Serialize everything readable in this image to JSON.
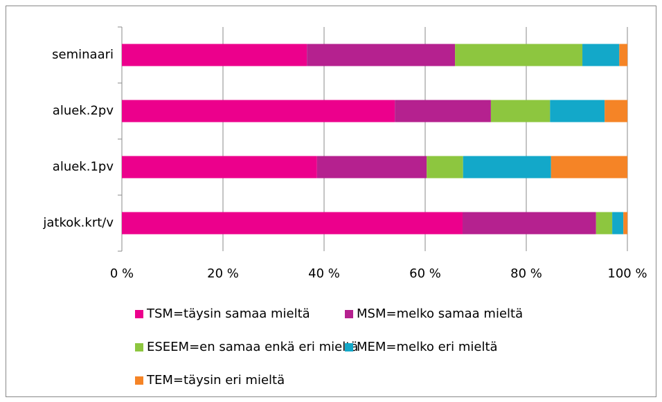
{
  "chart_data": {
    "type": "stacked-barh",
    "categories": [
      "seminaari",
      "aluek.2pv",
      "aluek.1pv",
      "jatkok.krt/v"
    ],
    "series": [
      {
        "name": "TSM=täysin samaa mieltä",
        "color": "#ec008c",
        "values": [
          36.6,
          54.0,
          38.6,
          67.4
        ]
      },
      {
        "name": "MSM=melko samaa mieltä",
        "color": "#b5218f",
        "values": [
          29.3,
          19.0,
          21.7,
          26.4
        ]
      },
      {
        "name": "ESEEM=en samaa enkä eri mieltä",
        "color": "#8dc63f",
        "values": [
          25.2,
          11.7,
          7.2,
          3.2
        ]
      },
      {
        "name": "MEM=melko eri mieltä",
        "color": "#13a8c9",
        "values": [
          7.3,
          10.8,
          17.4,
          2.2
        ]
      },
      {
        "name": "TEM=täysin eri mieltä",
        "color": "#f58426",
        "values": [
          1.6,
          4.5,
          15.1,
          0.8
        ]
      }
    ],
    "xlim": [
      0,
      100
    ],
    "xticks": [
      {
        "value": 0,
        "label": "0 %"
      },
      {
        "value": 20,
        "label": "20 %"
      },
      {
        "value": 40,
        "label": "40 %"
      },
      {
        "value": 60,
        "label": "60 %"
      },
      {
        "value": 80,
        "label": "80 %"
      },
      {
        "value": 100,
        "label": "100 %"
      }
    ],
    "grid": true,
    "legend": "bottom"
  }
}
